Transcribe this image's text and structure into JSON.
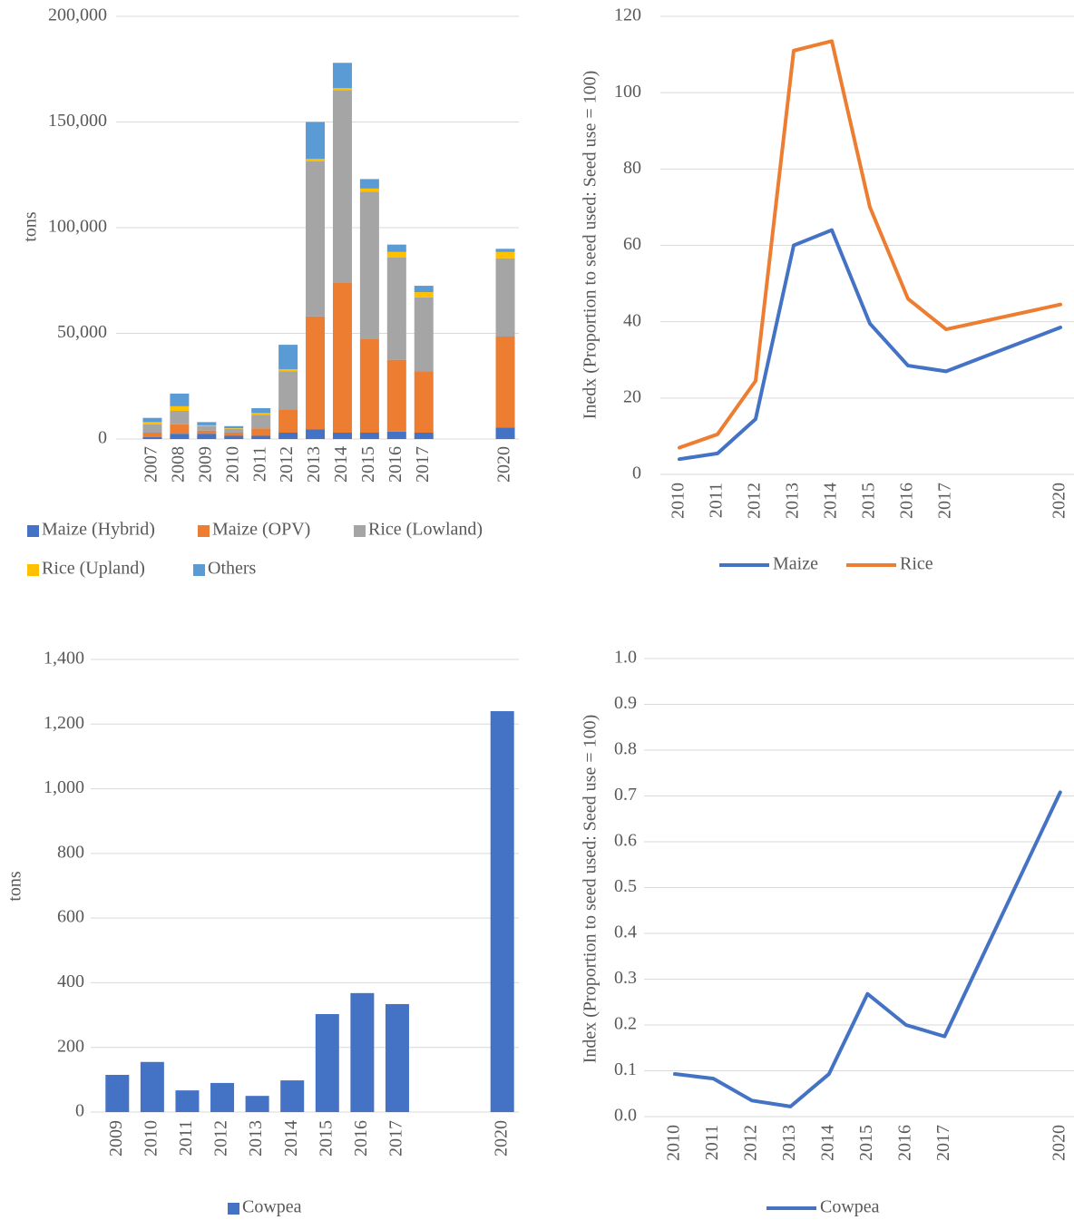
{
  "chart_data": [
    {
      "type": "bar",
      "stacked": true,
      "ylabel": "tons",
      "categories": [
        "2007",
        "2008",
        "2009",
        "2010",
        "2011",
        "2012",
        "2013",
        "2014",
        "2015",
        "2016",
        "2017",
        null,
        null,
        "2020"
      ],
      "series": [
        {
          "name": "Maize (Hybrid)",
          "color": "#4472c4",
          "values": [
            1000,
            2500,
            2500,
            1500,
            1500,
            3000,
            4500,
            3000,
            3000,
            3500,
            3000,
            null,
            null,
            5500
          ]
        },
        {
          "name": "Maize (OPV)",
          "color": "#ed7d31",
          "values": [
            2000,
            4500,
            1500,
            1500,
            3500,
            11000,
            53500,
            71000,
            44500,
            34000,
            29000,
            null,
            null,
            43000
          ]
        },
        {
          "name": "Rice (Lowland)",
          "color": "#a5a5a5",
          "values": [
            4000,
            6300,
            2000,
            1800,
            6500,
            18000,
            73500,
            91000,
            69500,
            48500,
            35000,
            null,
            null,
            37000
          ]
        },
        {
          "name": "Rice (Upland)",
          "color": "#ffc000",
          "values": [
            1000,
            2200,
            500,
            300,
            800,
            1000,
            1000,
            1000,
            1500,
            2500,
            2500,
            null,
            null,
            3000
          ]
        },
        {
          "name": "Others",
          "color": "#5b9bd5",
          "values": [
            2000,
            6000,
            1500,
            1000,
            2300,
            11600,
            17500,
            12000,
            4500,
            3500,
            3000,
            null,
            null,
            1500
          ]
        }
      ],
      "ylim": [
        0,
        200000
      ],
      "yticks": [
        0,
        {
          "value": 50000,
          "label": "50,000"
        },
        {
          "value": 100000,
          "label": "100,000"
        },
        {
          "value": 150000,
          "label": "150,000"
        },
        {
          "value": 200000,
          "label": "200,000"
        }
      ],
      "grid": true
    },
    {
      "type": "line",
      "ylabel": "Inedx (Proportion to seed used: Seed use = 100)",
      "x": [
        2010,
        2011,
        2012,
        2013,
        2014,
        2015,
        2016,
        2017,
        2020
      ],
      "xlim": [
        2009.5,
        2020.5
      ],
      "series": [
        {
          "name": "Maize",
          "color": "#4472c4",
          "values": [
            4,
            5.5,
            14.5,
            60,
            64,
            39.5,
            28.5,
            27,
            38.5
          ]
        },
        {
          "name": "Rice",
          "color": "#ed7d31",
          "values": [
            7,
            10.5,
            24.5,
            111,
            113.5,
            70,
            46,
            38,
            44.5
          ]
        }
      ],
      "ylim": [
        0,
        120
      ],
      "yticks": [
        0,
        20,
        40,
        60,
        80,
        100,
        120
      ],
      "grid": true
    },
    {
      "type": "bar",
      "ylabel": "tons",
      "categories": [
        "2009",
        "2010",
        "2011",
        "2012",
        "2013",
        "2014",
        "2015",
        "2016",
        "2017",
        null,
        null,
        "2020"
      ],
      "series": [
        {
          "name": "Cowpea",
          "color": "#4472c4",
          "values": [
            115,
            155,
            67,
            90,
            50,
            98,
            303,
            368,
            334,
            null,
            null,
            1240
          ]
        }
      ],
      "ylim": [
        0,
        1400
      ],
      "yticks": [
        0,
        200,
        400,
        600,
        800,
        {
          "value": 1000,
          "label": "1,000"
        },
        {
          "value": 1200,
          "label": "1,200"
        },
        {
          "value": 1400,
          "label": "1,400"
        }
      ],
      "grid": true
    },
    {
      "type": "line",
      "ylabel": "Index (Proportion to seed used: Seed use = 100)",
      "x": [
        2010,
        2011,
        2012,
        2013,
        2014,
        2015,
        2016,
        2017,
        2020
      ],
      "xlim": [
        2009.2,
        2020.5
      ],
      "series": [
        {
          "name": "Cowpea",
          "color": "#4472c4",
          "values": [
            0.093,
            0.083,
            0.035,
            0.022,
            0.093,
            0.268,
            0.2,
            0.175,
            0.708
          ]
        }
      ],
      "ylim": [
        0,
        1
      ],
      "yticks": [
        {
          "value": 0,
          "label": "0.0"
        },
        0.1,
        0.2,
        0.3,
        0.4,
        0.5,
        0.6,
        0.7,
        0.8,
        0.9,
        {
          "value": 1,
          "label": "1.0"
        }
      ],
      "grid": true
    }
  ]
}
